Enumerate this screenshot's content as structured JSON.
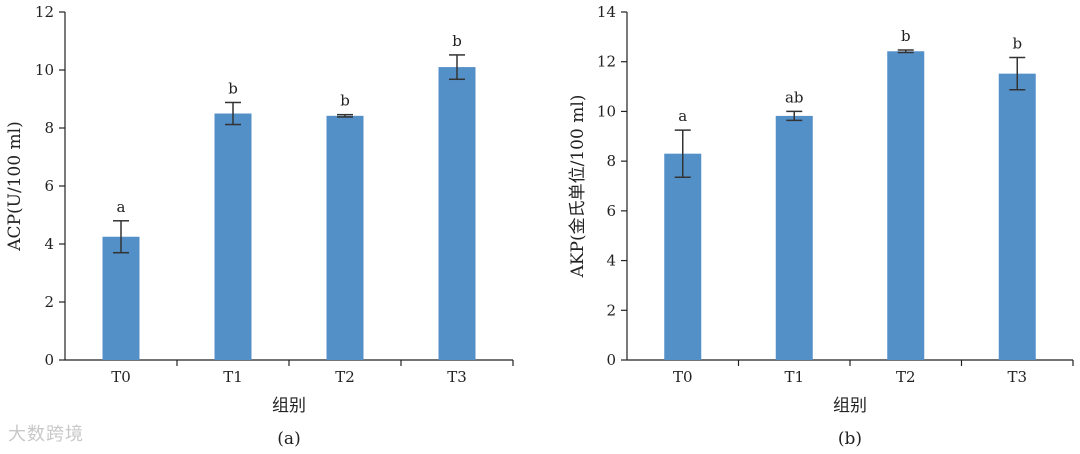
{
  "watermark": "大数跨境",
  "colors": {
    "bar": "#5490c8",
    "axis": "#222222",
    "error": "#333333"
  },
  "chart_data": [
    {
      "type": "bar",
      "panel": "(a)",
      "categories": [
        "T0",
        "T1",
        "T2",
        "T3"
      ],
      "values": [
        4.25,
        8.5,
        8.42,
        10.1
      ],
      "errors": [
        0.55,
        0.38,
        0.04,
        0.42
      ],
      "significance": [
        "a",
        "b",
        "b",
        "b"
      ],
      "xlabel": "组别",
      "ylabel": "ACP(U/100 ml)",
      "ylim": [
        0,
        12
      ],
      "yticks": [
        0,
        2,
        4,
        6,
        8,
        10,
        12
      ],
      "grid": false
    },
    {
      "type": "bar",
      "panel": "(b)",
      "categories": [
        "T0",
        "T1",
        "T2",
        "T3"
      ],
      "values": [
        8.3,
        9.82,
        12.42,
        11.52
      ],
      "errors": [
        0.95,
        0.18,
        0.05,
        0.65
      ],
      "significance": [
        "a",
        "ab",
        "b",
        "b"
      ],
      "xlabel": "组别",
      "ylabel": "AKP(金氏单位/100 ml)",
      "ylim": [
        0,
        14
      ],
      "yticks": [
        0,
        2,
        4,
        6,
        8,
        10,
        12,
        14
      ],
      "grid": false
    }
  ]
}
